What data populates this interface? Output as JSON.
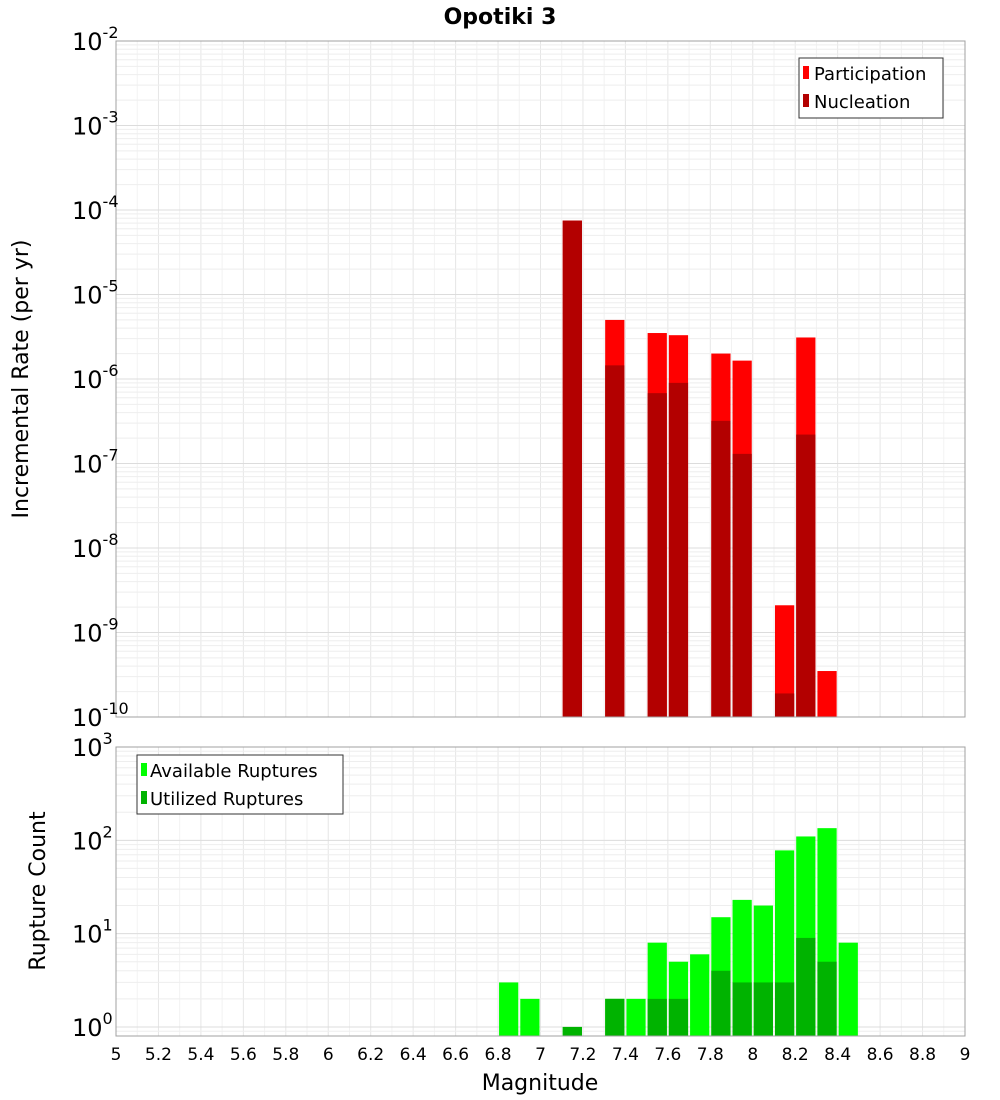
{
  "chart_data": [
    {
      "type": "bar",
      "title": "Opotiki 3",
      "xlabel": "",
      "ylabel": "Incremental Rate (per yr)",
      "yscale": "log",
      "ylim": [
        1e-10,
        0.01
      ],
      "xlim": [
        5,
        9
      ],
      "bin_width": 0.1,
      "grid": true,
      "legend_position": "top-right",
      "y_ticks": [
        {
          "base": "10",
          "exp": "-2"
        },
        {
          "base": "10",
          "exp": "-3"
        },
        {
          "base": "10",
          "exp": "-4"
        },
        {
          "base": "10",
          "exp": "-5"
        },
        {
          "base": "10",
          "exp": "-6"
        },
        {
          "base": "10",
          "exp": "-7"
        },
        {
          "base": "10",
          "exp": "-8"
        },
        {
          "base": "10",
          "exp": "-9"
        },
        {
          "base": "10",
          "exp": "-10"
        }
      ],
      "series": [
        {
          "name": "Participation",
          "color": "#ff0000",
          "x": [
            7.15,
            7.35,
            7.55,
            7.65,
            7.85,
            7.95,
            8.15,
            8.25,
            8.35
          ],
          "values": [
            7.5e-05,
            5e-06,
            3.5e-06,
            3.3e-06,
            2e-06,
            1.65e-06,
            2.1e-09,
            3.1e-06,
            3.5e-10
          ]
        },
        {
          "name": "Nucleation",
          "color": "#b30000",
          "x": [
            7.15,
            7.35,
            7.55,
            7.65,
            7.85,
            7.95,
            8.15,
            8.25
          ],
          "values": [
            7.5e-05,
            1.45e-06,
            6.8e-07,
            9e-07,
            3.2e-07,
            1.3e-07,
            1.9e-10,
            2.2e-07
          ]
        }
      ]
    },
    {
      "type": "bar",
      "title": "",
      "xlabel": "Magnitude",
      "ylabel": "Rupture Count",
      "yscale": "log",
      "ylim": [
        0.8,
        1000
      ],
      "xlim": [
        5,
        9
      ],
      "bin_width": 0.1,
      "grid": true,
      "legend_position": "top-left",
      "x_ticks": [
        "5",
        "5.2",
        "5.4",
        "5.6",
        "5.8",
        "6",
        "6.2",
        "6.4",
        "6.6",
        "6.8",
        "7",
        "7.2",
        "7.4",
        "7.6",
        "7.8",
        "8",
        "8.2",
        "8.4",
        "8.6",
        "8.8",
        "9"
      ],
      "y_ticks": [
        {
          "base": "10",
          "exp": "3"
        },
        {
          "base": "10",
          "exp": "2"
        },
        {
          "base": "10",
          "exp": "1"
        },
        {
          "base": "10",
          "exp": "0"
        }
      ],
      "series": [
        {
          "name": "Available Ruptures",
          "color": "#00ff00",
          "x": [
            6.85,
            6.95,
            7.15,
            7.35,
            7.45,
            7.55,
            7.65,
            7.75,
            7.85,
            7.95,
            8.05,
            8.15,
            8.25,
            8.35,
            8.45
          ],
          "values": [
            3,
            2,
            1,
            2,
            2,
            8,
            5,
            6,
            15,
            23,
            20,
            78,
            110,
            135,
            8
          ]
        },
        {
          "name": "Utilized Ruptures",
          "color": "#00b300",
          "x": [
            7.15,
            7.35,
            7.55,
            7.65,
            7.85,
            7.95,
            8.05,
            8.15,
            8.25,
            8.35
          ],
          "values": [
            1,
            2,
            2,
            2,
            4,
            3,
            3,
            3,
            9,
            5
          ]
        }
      ]
    }
  ]
}
